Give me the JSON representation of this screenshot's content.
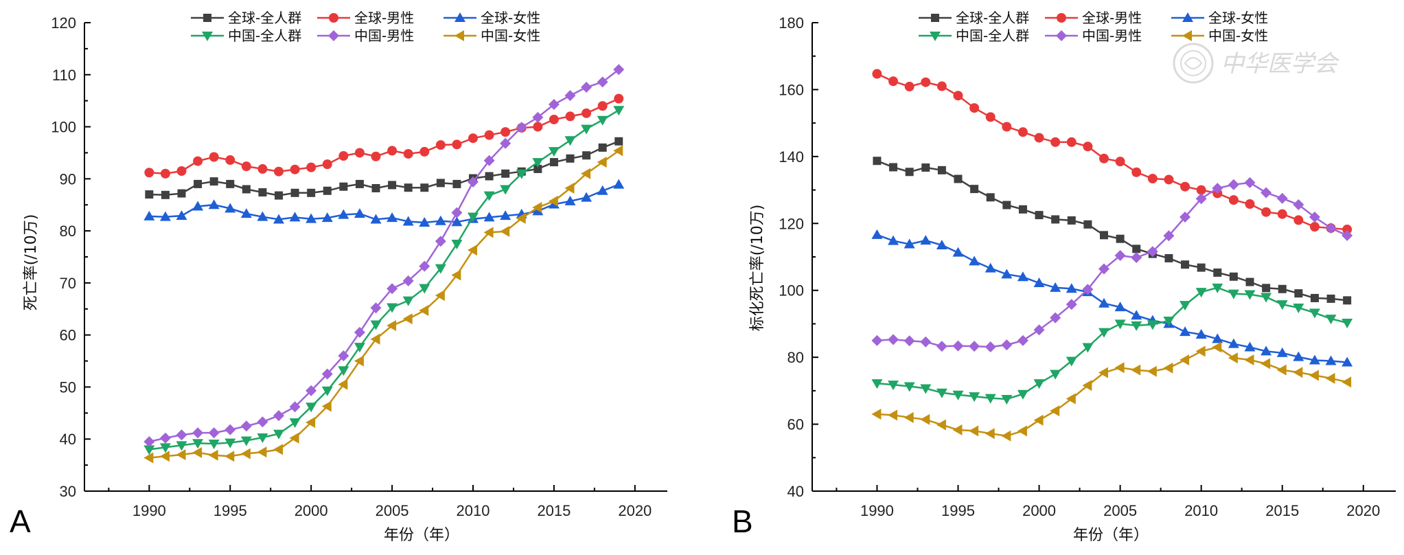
{
  "watermark": "中华医学会",
  "colors": {
    "global_all": "#404040",
    "global_male": "#e8393a",
    "global_female": "#1f5fd6",
    "china_all": "#1fa565",
    "china_male": "#a064d8",
    "china_female": "#c4900f"
  },
  "chart_data": [
    {
      "panel": "A",
      "type": "line",
      "xlabel": "年份（年）",
      "ylabel": "死亡率(/10万)",
      "xlim": [
        1986,
        2022
      ],
      "ylim": [
        30,
        120
      ],
      "xticks": [
        1990,
        1995,
        2000,
        2005,
        2010,
        2015,
        2020
      ],
      "yticks": [
        30,
        40,
        50,
        60,
        70,
        80,
        90,
        100,
        110,
        120
      ],
      "legend_position": "top",
      "x": [
        1990,
        1991,
        1992,
        1993,
        1994,
        1995,
        1996,
        1997,
        1998,
        1999,
        2000,
        2001,
        2002,
        2003,
        2004,
        2005,
        2006,
        2007,
        2008,
        2009,
        2010,
        2011,
        2012,
        2013,
        2014,
        2015,
        2016,
        2017,
        2018,
        2019
      ],
      "series": [
        {
          "key": "global_all",
          "name": "全球-全人群",
          "marker": "square",
          "values": [
            87.0,
            86.9,
            87.2,
            89.0,
            89.5,
            89.0,
            88.0,
            87.4,
            86.8,
            87.3,
            87.3,
            87.7,
            88.5,
            89.0,
            88.2,
            88.8,
            88.3,
            88.3,
            89.2,
            89.0,
            90.1,
            90.5,
            91.0,
            91.4,
            91.9,
            93.2,
            93.9,
            94.5,
            96.0,
            97.2
          ]
        },
        {
          "key": "global_male",
          "name": "全球-男性",
          "marker": "circle",
          "values": [
            91.2,
            91.0,
            91.5,
            93.4,
            94.2,
            93.6,
            92.4,
            91.9,
            91.4,
            91.8,
            92.2,
            92.8,
            94.4,
            95.0,
            94.3,
            95.4,
            94.8,
            95.2,
            96.5,
            96.6,
            97.8,
            98.4,
            99.0,
            99.8,
            100.0,
            101.4,
            102.0,
            102.6,
            104.0,
            105.4
          ]
        },
        {
          "key": "global_female",
          "name": "全球-女性",
          "marker": "triangle-up",
          "values": [
            82.8,
            82.7,
            82.9,
            84.7,
            85.0,
            84.3,
            83.3,
            82.7,
            82.2,
            82.6,
            82.3,
            82.5,
            83.1,
            83.3,
            82.2,
            82.5,
            81.8,
            81.6,
            81.9,
            81.7,
            82.3,
            82.6,
            82.9,
            83.2,
            83.8,
            85.1,
            85.7,
            86.4,
            87.7,
            88.9
          ]
        },
        {
          "key": "china_all",
          "name": "中国-全人群",
          "marker": "triangle-down",
          "values": [
            38.0,
            38.4,
            38.8,
            39.2,
            39.1,
            39.3,
            39.7,
            40.3,
            41.0,
            43.2,
            46.2,
            49.3,
            53.2,
            57.7,
            62.0,
            65.3,
            66.6,
            69.0,
            72.8,
            77.5,
            82.7,
            86.8,
            88.0,
            91.0,
            93.2,
            95.3,
            97.4,
            99.6,
            101.3,
            103.2
          ]
        },
        {
          "key": "china_male",
          "name": "中国-男性",
          "marker": "diamond",
          "values": [
            39.5,
            40.2,
            40.8,
            41.2,
            41.2,
            41.8,
            42.5,
            43.3,
            44.5,
            46.2,
            49.3,
            52.5,
            56.0,
            60.5,
            65.2,
            68.9,
            70.4,
            73.2,
            78.0,
            83.5,
            89.4,
            93.5,
            96.8,
            99.9,
            101.8,
            104.3,
            106.0,
            107.6,
            108.6,
            111.0
          ]
        },
        {
          "key": "china_female",
          "name": "中国-女性",
          "marker": "triangle-left",
          "values": [
            36.4,
            36.7,
            37.0,
            37.4,
            36.9,
            36.7,
            37.2,
            37.5,
            38.0,
            40.2,
            43.2,
            46.3,
            50.5,
            55.0,
            59.2,
            61.8,
            63.1,
            64.7,
            67.6,
            71.5,
            76.3,
            79.7,
            79.9,
            82.4,
            84.5,
            85.7,
            88.2,
            91.0,
            93.2,
            95.4
          ]
        }
      ]
    },
    {
      "panel": "B",
      "type": "line",
      "xlabel": "年份（年）",
      "ylabel": "标化死亡率(/10万)",
      "xlim": [
        1986,
        2022
      ],
      "ylim": [
        40,
        180
      ],
      "xticks": [
        1990,
        1995,
        2000,
        2005,
        2010,
        2015,
        2020
      ],
      "yticks": [
        40,
        60,
        80,
        100,
        120,
        140,
        160,
        180
      ],
      "legend_position": "top",
      "x": [
        1990,
        1991,
        1992,
        1993,
        1994,
        1995,
        1996,
        1997,
        1998,
        1999,
        2000,
        2001,
        2002,
        2003,
        2004,
        2005,
        2006,
        2007,
        2008,
        2009,
        2010,
        2011,
        2012,
        2013,
        2014,
        2015,
        2016,
        2017,
        2018,
        2019
      ],
      "series": [
        {
          "key": "global_all",
          "name": "全球-全人群",
          "marker": "square",
          "values": [
            138.7,
            136.8,
            135.4,
            136.7,
            135.9,
            133.3,
            130.3,
            127.8,
            125.5,
            124.2,
            122.5,
            121.2,
            120.9,
            119.7,
            116.5,
            115.4,
            112.4,
            110.9,
            109.6,
            107.7,
            106.8,
            105.3,
            104.1,
            102.5,
            100.7,
            100.4,
            99.1,
            97.7,
            97.5,
            97.0
          ]
        },
        {
          "key": "global_male",
          "name": "全球-男性",
          "marker": "circle",
          "values": [
            164.7,
            162.5,
            160.9,
            162.2,
            161.0,
            158.2,
            154.5,
            151.8,
            148.9,
            147.3,
            145.6,
            144.3,
            144.3,
            143.0,
            139.4,
            138.5,
            135.3,
            133.4,
            133.1,
            131.0,
            130.0,
            129.0,
            127.0,
            125.8,
            123.4,
            122.8,
            121.0,
            119.0,
            118.6,
            118.2
          ]
        },
        {
          "key": "global_female",
          "name": "全球-女性",
          "marker": "triangle-up",
          "values": [
            116.6,
            114.8,
            113.8,
            114.9,
            113.5,
            111.3,
            108.7,
            106.6,
            104.8,
            104.0,
            102.2,
            100.8,
            100.5,
            99.5,
            96.1,
            95.0,
            92.5,
            91.0,
            90.0,
            87.6,
            86.8,
            85.5,
            84.0,
            83.0,
            81.8,
            81.3,
            80.1,
            79.1,
            78.9,
            78.5
          ]
        },
        {
          "key": "china_all",
          "name": "中国-全人群",
          "marker": "triangle-down",
          "values": [
            72.2,
            71.8,
            71.3,
            70.7,
            69.4,
            68.8,
            68.3,
            67.8,
            67.5,
            69.0,
            72.2,
            75.0,
            78.9,
            83.0,
            87.5,
            90.0,
            89.5,
            89.8,
            90.9,
            95.6,
            99.5,
            100.8,
            99.0,
            98.8,
            98.0,
            95.8,
            94.8,
            93.3,
            91.5,
            90.3
          ]
        },
        {
          "key": "china_male",
          "name": "中国-男性",
          "marker": "diamond",
          "values": [
            85.0,
            85.3,
            84.9,
            84.6,
            83.3,
            83.4,
            83.3,
            83.1,
            83.7,
            85.0,
            88.2,
            91.8,
            95.8,
            100.3,
            106.4,
            110.4,
            109.8,
            111.6,
            116.3,
            121.9,
            127.4,
            130.5,
            131.6,
            132.2,
            129.2,
            127.5,
            125.6,
            121.9,
            118.6,
            116.4
          ]
        },
        {
          "key": "china_female",
          "name": "中国-女性",
          "marker": "triangle-left",
          "values": [
            63.0,
            62.7,
            62.0,
            61.4,
            59.8,
            58.3,
            58.0,
            57.2,
            56.5,
            58.0,
            61.2,
            64.0,
            67.6,
            71.6,
            75.4,
            76.9,
            76.2,
            75.8,
            76.8,
            79.2,
            81.8,
            83.0,
            79.8,
            79.2,
            78.1,
            76.2,
            75.5,
            74.6,
            73.7,
            72.6
          ]
        }
      ]
    }
  ]
}
